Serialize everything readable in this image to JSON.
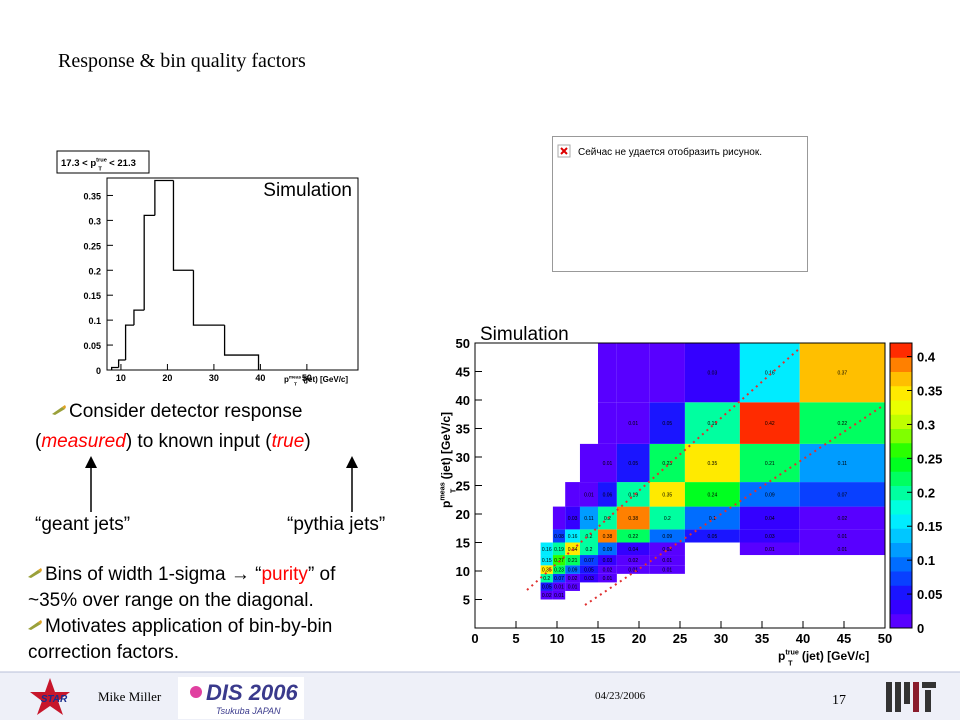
{
  "title": "Response & bin quality factors",
  "placeholder": "Сейчас не удается отобразить рисунок.",
  "note": [
    [
      "Consider detector response"
    ],
    [
      "(",
      "measured",
      ") to known input (",
      "true",
      ")"
    ]
  ],
  "pointers": [
    "“geant jets”",
    "“pythia jets”"
  ],
  "bullets": [
    [
      [
        "Bins of width 1-sigma ",
        "→",
        " “",
        "purity",
        "” of"
      ],
      [
        "~35% over range on the diagonal."
      ]
    ],
    [
      [
        "Motivates application of bin-by-bin"
      ],
      [
        "correction factors."
      ]
    ]
  ],
  "footer": {
    "author": "Mike Miller",
    "date": "04/23/2006",
    "page": "17",
    "star": "STAR",
    "dis": "DIS 2006",
    "dis_place": "Tsukuba JAPAN"
  },
  "chart_data": [
    {
      "type": "histogram",
      "title": {
        "main": "17.3 < p",
        "sub": "T",
        "sup": "true",
        "rest": " < 21.3"
      },
      "x_label": {
        "main": "p",
        "sub": "T",
        "sup": "meas",
        "rest": " (jet) [GeV/c]"
      },
      "annotation": "Simulation",
      "bins": [
        8,
        9.5,
        11,
        12.8,
        15,
        17.3,
        21.3,
        25.6,
        32.3,
        39.6
      ],
      "counts": [
        0.005,
        0.02,
        0.09,
        0.12,
        0.31,
        0.38,
        0.2,
        0.09,
        0.03
      ],
      "color": "#000000",
      "xlim": [
        7,
        61
      ],
      "ylim": [
        0,
        0.385
      ],
      "xticks": [
        10,
        20,
        30,
        40,
        50
      ],
      "yticks": [
        0,
        0.05,
        0.1,
        0.15,
        0.2,
        0.25,
        0.3,
        0.35
      ]
    },
    {
      "type": "heatmap",
      "annotation": "Simulation",
      "x_label": {
        "main": "p",
        "sub": "T",
        "sup": "true",
        "rest": " (jet) [GeV/c]"
      },
      "y_label": {
        "main": "p",
        "sub": "T",
        "sup": "meas",
        "rest": " (jet) [GeV/c]"
      },
      "xbins": [
        5,
        6.5,
        8,
        9.5,
        11,
        12.8,
        15,
        17.3,
        21.3,
        25.6,
        32.3,
        39.6,
        50
      ],
      "ybins": [
        5,
        6.5,
        8,
        9.5,
        11,
        12.8,
        15,
        17.3,
        21.3,
        25.6,
        32.3,
        39.6,
        50
      ],
      "values": [
        [
          null,
          null,
          0.02,
          0.01,
          null,
          null,
          null,
          null,
          null,
          null,
          null,
          null
        ],
        [
          null,
          null,
          0.05,
          0.01,
          0.01,
          null,
          null,
          null,
          null,
          null,
          null,
          null
        ],
        [
          null,
          null,
          0.2,
          0.07,
          0.02,
          0.03,
          0.01,
          null,
          null,
          null,
          null,
          null
        ],
        [
          null,
          null,
          0.35,
          0.23,
          0.09,
          0.05,
          0.02,
          0.01,
          0.01,
          null,
          null,
          null
        ],
        [
          null,
          null,
          0.15,
          0.27,
          0.21,
          0.07,
          0.03,
          0.02,
          0.01,
          null,
          null,
          null
        ],
        [
          null,
          null,
          0.16,
          0.19,
          0.34,
          0.2,
          0.09,
          0.04,
          0.02,
          null,
          0.01,
          0.01
        ],
        [
          null,
          null,
          null,
          0.08,
          0.16,
          0.2,
          0.38,
          0.22,
          0.09,
          0.05,
          0.03,
          0.01
        ],
        [
          null,
          null,
          null,
          0,
          0.03,
          0.11,
          0.2,
          0.38,
          0.2,
          0.1,
          0.04,
          0.02
        ],
        [
          null,
          null,
          null,
          null,
          0,
          0.01,
          0.06,
          0.19,
          0.35,
          0.24,
          0.09,
          0.07
        ],
        [
          null,
          null,
          null,
          null,
          null,
          0,
          0.01,
          0.05,
          0.23,
          0.35,
          0.21,
          0.11
        ],
        [
          null,
          null,
          null,
          null,
          null,
          null,
          0,
          0.01,
          0.05,
          0.19,
          0.42,
          0.22
        ],
        [
          null,
          null,
          null,
          null,
          null,
          null,
          0,
          0,
          0,
          0.03,
          0.16,
          0.37
        ]
      ],
      "xlim": [
        0,
        50
      ],
      "ylim": [
        0,
        50
      ],
      "xticks": [
        0,
        5,
        10,
        15,
        20,
        25,
        30,
        35,
        40,
        45,
        50
      ],
      "yticks": [
        5,
        10,
        15,
        20,
        25,
        30,
        35,
        40,
        45,
        50
      ],
      "zlim": [
        0,
        0.42
      ],
      "zticks": [
        0,
        0.05,
        0.1,
        0.15,
        0.2,
        0.25,
        0.3,
        0.35,
        0.4
      ],
      "palette": [
        "#6a00ff",
        "#2200ff",
        "#0055ff",
        "#00b4ff",
        "#00ffff",
        "#00ff80",
        "#00ff00",
        "#aaff00",
        "#ffff00",
        "#ffaa00",
        "#ff0000"
      ]
    }
  ]
}
